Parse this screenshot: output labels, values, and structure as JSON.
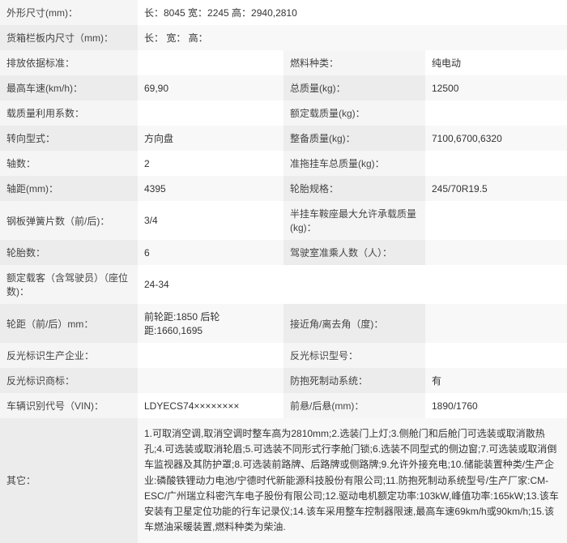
{
  "rows": [
    {
      "full": true,
      "label": "外形尺寸(mm)：",
      "value": "长：8045 宽：2245 高：2940,2810"
    },
    {
      "full": true,
      "label": "货箱栏板内尺寸（mm)：",
      "value": "长： 宽： 高："
    },
    {
      "label1": "排放依据标准：",
      "value1": "",
      "label2": "燃料种类：",
      "value2": "纯电动"
    },
    {
      "label1": "最高车速(km/h)：",
      "value1": "69,90",
      "label2": "总质量(kg)：",
      "value2": "12500"
    },
    {
      "label1": "载质量利用系数：",
      "value1": "",
      "label2": "额定载质量(kg)：",
      "value2": ""
    },
    {
      "label1": "转向型式：",
      "value1": "方向盘",
      "label2": "整备质量(kg)：",
      "value2": "7100,6700,6320"
    },
    {
      "label1": "轴数：",
      "value1": "2",
      "label2": "准拖挂车总质量(kg)：",
      "value2": ""
    },
    {
      "label1": "轴距(mm)：",
      "value1": "4395",
      "label2": "轮胎规格：",
      "value2": "245/70R19.5"
    },
    {
      "label1": "钢板弹簧片数（前/后)：",
      "value1": "3/4",
      "label2": "半挂车鞍座最大允许承载质量(kg)：",
      "value2": ""
    },
    {
      "label1": "轮胎数：",
      "value1": "6",
      "label2": "驾驶室准乘人数（人）：",
      "value2": ""
    },
    {
      "full": true,
      "label": "额定载客（含驾驶员）（座位数)：",
      "value": "24-34"
    },
    {
      "label1": "轮距（前/后）mm：",
      "value1": "前轮距:1850 后轮距:1660,1695",
      "label2": "接近角/离去角（度)：",
      "value2": ""
    },
    {
      "label1": "反光标识生产企业：",
      "value1": "",
      "label2": "反光标识型号：",
      "value2": ""
    },
    {
      "label1": "反光标识商标：",
      "value1": "",
      "label2": "防抱死制动系统：",
      "value2": "有"
    },
    {
      "label1": "车辆识别代号（VIN)：",
      "value1": "LDYECS74××××××××",
      "label2": "前悬/后悬(mm)：",
      "value2": "1890/1760"
    }
  ],
  "notes_label": "其它：",
  "notes_value": "1.可取消空调,取消空调时整车高为2810mm;2.选装门上灯;3.侧舱门和后舱门可选装或取消散热孔;4.可选装或取消轮眉;5.可选装不同形式行李舱门锁;6.选装不同型式的侧边窗;7.可选装或取消倒车监视器及其防护罩;8.可选装前路牌、后路牌或侧路牌;9.允许外接充电;10.储能装置种类/生产企业:磷酸铁锂动力电池/宁德时代新能源科技股份有限公司;11.防抱死制动系统型号/生产厂家:CM-ESC/广州瑞立科密汽车电子股份有限公司;12.驱动电机额定功率:103kW,峰值功率:165kW;13.该车安装有卫星定位功能的行车记录仪;14.该车采用整车控制器限速,最高车速69km/h或90km/h;15.该车燃油采暖装置,燃料种类为柴油."
}
